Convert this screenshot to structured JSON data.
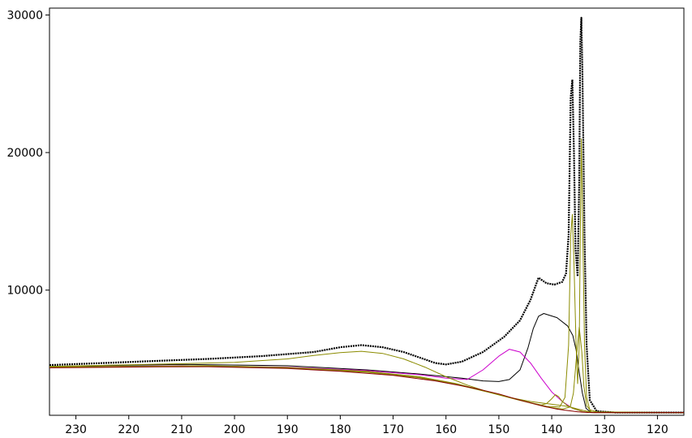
{
  "chart_data": {
    "type": "line",
    "title": "",
    "xlabel": "",
    "ylabel": "",
    "xlim": [
      235,
      115
    ],
    "ylim": [
      900,
      30500
    ],
    "x_reversed": true,
    "grid": false,
    "legend": "none",
    "x_ticks": [
      230,
      220,
      210,
      200,
      190,
      180,
      170,
      160,
      150,
      140,
      130,
      120
    ],
    "y_ticks": [
      10000,
      20000,
      30000
    ],
    "series": [
      {
        "color": "#000000",
        "style": "dotted-data",
        "points": [
          [
            235,
            4550
          ],
          [
            225,
            4700
          ],
          [
            215,
            4850
          ],
          [
            205,
            5000
          ],
          [
            195,
            5200
          ],
          [
            185,
            5500
          ],
          [
            180,
            5850
          ],
          [
            176,
            6000
          ],
          [
            172,
            5850
          ],
          [
            168,
            5500
          ],
          [
            165,
            5100
          ],
          [
            162,
            4700
          ],
          [
            160,
            4600
          ],
          [
            157,
            4800
          ],
          [
            153,
            5500
          ],
          [
            149,
            6600
          ],
          [
            146,
            7800
          ],
          [
            144,
            9300
          ],
          [
            142.5,
            10900
          ],
          [
            141,
            10500
          ],
          [
            139.5,
            10400
          ],
          [
            138,
            10600
          ],
          [
            137.3,
            11200
          ],
          [
            136.8,
            14000
          ],
          [
            136.4,
            24000
          ],
          [
            136.1,
            25300
          ],
          [
            135.8,
            20000
          ],
          [
            135.5,
            13000
          ],
          [
            135.1,
            11000
          ],
          [
            134.8,
            18000
          ],
          [
            134.6,
            28000
          ],
          [
            134.4,
            29800
          ],
          [
            134.2,
            26000
          ],
          [
            133.8,
            14000
          ],
          [
            133.4,
            6000
          ],
          [
            132.8,
            2000
          ],
          [
            131.5,
            1200
          ],
          [
            128,
            1100
          ],
          [
            115,
            1100
          ]
        ]
      },
      {
        "color": "#000000",
        "style": "thin",
        "points": [
          [
            235,
            4450
          ],
          [
            210,
            4600
          ],
          [
            190,
            4500
          ],
          [
            175,
            4200
          ],
          [
            165,
            3900
          ],
          [
            157,
            3600
          ],
          [
            153,
            3400
          ],
          [
            150,
            3350
          ],
          [
            148,
            3500
          ],
          [
            146,
            4200
          ],
          [
            144.5,
            5800
          ],
          [
            143.5,
            7200
          ],
          [
            142.5,
            8100
          ],
          [
            141.5,
            8300
          ],
          [
            139,
            8000
          ],
          [
            137,
            7400
          ],
          [
            136,
            6700
          ],
          [
            135.3,
            5500
          ],
          [
            134.8,
            4000
          ],
          [
            134.2,
            2500
          ],
          [
            133.5,
            1400
          ],
          [
            132.5,
            1100
          ],
          [
            115,
            1100
          ]
        ]
      },
      {
        "color": "#cc00cc",
        "style": "thin",
        "points": [
          [
            235,
            4400
          ],
          [
            210,
            4500
          ],
          [
            190,
            4400
          ],
          [
            175,
            4150
          ],
          [
            165,
            3850
          ],
          [
            160,
            3600
          ],
          [
            156,
            3500
          ],
          [
            153,
            4200
          ],
          [
            150,
            5200
          ],
          [
            148,
            5700
          ],
          [
            146,
            5500
          ],
          [
            144,
            4700
          ],
          [
            142,
            3600
          ],
          [
            140,
            2600
          ],
          [
            138,
            1900
          ],
          [
            136,
            1400
          ],
          [
            134,
            1150
          ],
          [
            132,
            1100
          ],
          [
            115,
            1100
          ]
        ]
      },
      {
        "color": "#8b8b00",
        "style": "thin",
        "points": [
          [
            235,
            4450
          ],
          [
            210,
            4650
          ],
          [
            200,
            4750
          ],
          [
            190,
            5000
          ],
          [
            185,
            5250
          ],
          [
            180,
            5450
          ],
          [
            176,
            5550
          ],
          [
            172,
            5400
          ],
          [
            168,
            5000
          ],
          [
            164,
            4400
          ],
          [
            160,
            3700
          ],
          [
            156,
            3100
          ],
          [
            152,
            2600
          ],
          [
            148,
            2200
          ],
          [
            144,
            1900
          ],
          [
            140,
            1700
          ],
          [
            137,
            1550
          ],
          [
            134,
            1250
          ],
          [
            132,
            1100
          ],
          [
            115,
            1100
          ]
        ]
      },
      {
        "color": "#8b8b00",
        "style": "thin",
        "points": [
          [
            235,
            4420
          ],
          [
            205,
            4500
          ],
          [
            190,
            4380
          ],
          [
            175,
            4100
          ],
          [
            165,
            3700
          ],
          [
            158,
            3200
          ],
          [
            153,
            2700
          ],
          [
            148,
            2200
          ],
          [
            144,
            1800
          ],
          [
            142,
            1650
          ],
          [
            141,
            1750
          ],
          [
            140,
            2100
          ],
          [
            139.3,
            2400
          ],
          [
            138.7,
            2250
          ],
          [
            138,
            1900
          ],
          [
            137,
            1600
          ],
          [
            136,
            1400
          ],
          [
            134,
            1150
          ],
          [
            132,
            1100
          ],
          [
            115,
            1100
          ]
        ]
      },
      {
        "color": "#8b8b00",
        "style": "thin",
        "points": [
          [
            235,
            4400
          ],
          [
            205,
            4480
          ],
          [
            190,
            4350
          ],
          [
            175,
            4050
          ],
          [
            165,
            3650
          ],
          [
            158,
            3150
          ],
          [
            152,
            2600
          ],
          [
            146,
            2000
          ],
          [
            141,
            1550
          ],
          [
            138.5,
            1500
          ],
          [
            137.5,
            2200
          ],
          [
            136.8,
            6000
          ],
          [
            136.4,
            14000
          ],
          [
            136.1,
            15500
          ],
          [
            135.8,
            12000
          ],
          [
            135.4,
            6000
          ],
          [
            135.1,
            3200
          ],
          [
            134.8,
            6000
          ],
          [
            134.6,
            14000
          ],
          [
            134.4,
            21000
          ],
          [
            134.2,
            16000
          ],
          [
            133.8,
            6000
          ],
          [
            133.4,
            2200
          ],
          [
            132.8,
            1300
          ],
          [
            131,
            1100
          ],
          [
            115,
            1100
          ]
        ]
      },
      {
        "color": "#8b8b00",
        "style": "thin",
        "points": [
          [
            235,
            4380
          ],
          [
            205,
            4460
          ],
          [
            190,
            4330
          ],
          [
            175,
            4030
          ],
          [
            165,
            3630
          ],
          [
            158,
            3130
          ],
          [
            152,
            2580
          ],
          [
            146,
            1980
          ],
          [
            141,
            1500
          ],
          [
            138,
            1350
          ],
          [
            136.5,
            1500
          ],
          [
            135.9,
            2500
          ],
          [
            135.3,
            5200
          ],
          [
            134.8,
            7300
          ],
          [
            134.3,
            5500
          ],
          [
            133.9,
            3000
          ],
          [
            133.4,
            1600
          ],
          [
            132.5,
            1150
          ],
          [
            115,
            1100
          ]
        ]
      },
      {
        "color": "#880000",
        "style": "thin",
        "points": [
          [
            235,
            4350
          ],
          [
            215,
            4420
          ],
          [
            205,
            4430
          ],
          [
            190,
            4300
          ],
          [
            180,
            4100
          ],
          [
            170,
            3800
          ],
          [
            162,
            3400
          ],
          [
            155,
            2900
          ],
          [
            150,
            2450
          ],
          [
            146,
            2000
          ],
          [
            142,
            1600
          ],
          [
            139,
            1350
          ],
          [
            137,
            1250
          ],
          [
            135,
            1150
          ],
          [
            133,
            1100
          ],
          [
            115,
            1100
          ]
        ]
      }
    ]
  }
}
